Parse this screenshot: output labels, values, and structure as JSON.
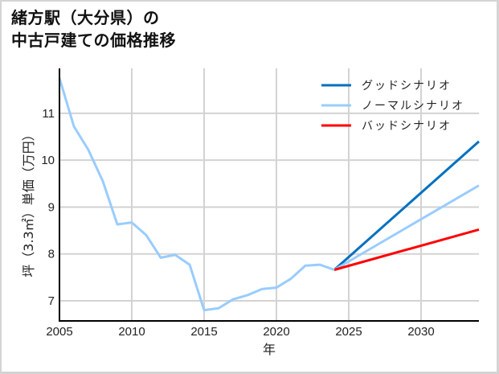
{
  "title_lines": [
    "緒方駅（大分県）の",
    "中古戸建ての価格推移"
  ],
  "chart_data": {
    "type": "line",
    "title": "緒方駅（大分県）の中古戸建ての価格推移",
    "xlabel": "年",
    "ylabel": "坪（3.3㎡）単価（万円）",
    "xlim": [
      2005,
      2034
    ],
    "ylim": [
      6.57,
      11.96
    ],
    "x_ticks": [
      2005,
      2010,
      2015,
      2020,
      2025,
      2030
    ],
    "y_ticks": [
      7,
      8,
      9,
      10,
      11
    ],
    "grid": true,
    "legend_position": "upper right",
    "series": [
      {
        "name": "ノーマルシナリオ",
        "color": "#99ccff",
        "x": [
          2005,
          2006,
          2007,
          2008,
          2009,
          2010,
          2011,
          2012,
          2013,
          2014,
          2015,
          2016,
          2017,
          2018,
          2019,
          2020,
          2021,
          2022,
          2023,
          2024
        ],
        "values": [
          11.75,
          10.72,
          10.22,
          9.55,
          8.63,
          8.67,
          8.4,
          7.92,
          7.98,
          7.77,
          6.8,
          6.84,
          7.03,
          7.12,
          7.25,
          7.28,
          7.47,
          7.75,
          7.77,
          7.66
        ]
      },
      {
        "name": "グッドシナリオ",
        "color": "#0070c0",
        "x": [
          2024,
          2034
        ],
        "values": [
          7.66,
          10.4
        ]
      },
      {
        "name": "ノーマルシナリオ",
        "color": "#99ccff",
        "x": [
          2024,
          2034
        ],
        "values": [
          7.66,
          9.46
        ]
      },
      {
        "name": "バッドシナリオ",
        "color": "#ff0000",
        "x": [
          2024,
          2034
        ],
        "values": [
          7.66,
          8.52
        ]
      }
    ]
  },
  "legend": [
    {
      "label": "グッドシナリオ",
      "color": "#0070c0"
    },
    {
      "label": "ノーマルシナリオ",
      "color": "#99ccff"
    },
    {
      "label": "バッドシナリオ",
      "color": "#ff0000"
    }
  ]
}
